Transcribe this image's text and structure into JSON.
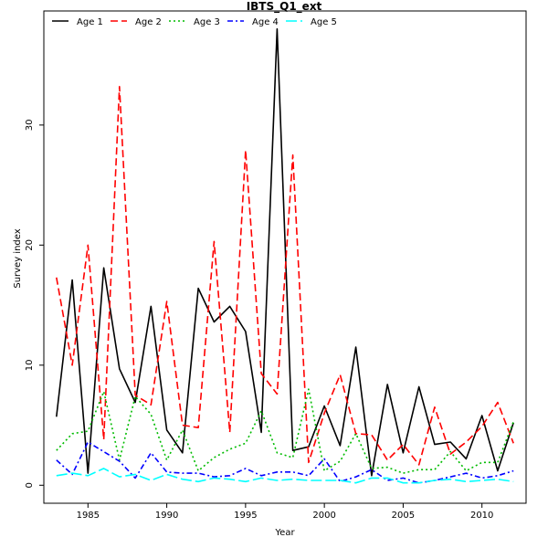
{
  "chart_data": {
    "type": "line",
    "title": "IBTS_Q1_ext",
    "xlabel": "Year",
    "ylabel": "Survey index",
    "xlim": [
      1982.2,
      2012.8
    ],
    "ylim": [
      -1.5,
      39.5
    ],
    "x_ticks": [
      1985,
      1990,
      1995,
      2000,
      2005,
      2010
    ],
    "y_ticks": [
      0,
      10,
      20,
      30
    ],
    "legend_position": "top-left",
    "grid": false,
    "x": [
      1983,
      1984,
      1985,
      1986,
      1987,
      1988,
      1989,
      1990,
      1991,
      1992,
      1993,
      1994,
      1995,
      1996,
      1997,
      1998,
      1999,
      2000,
      2001,
      2002,
      2003,
      2004,
      2005,
      2006,
      2007,
      2008,
      2009,
      2010,
      2011,
      2012
    ],
    "series": [
      {
        "name": "Age 1",
        "color": "#000000",
        "dash": "solid",
        "values": [
          5.7,
          17.1,
          1.0,
          18.1,
          9.7,
          6.9,
          14.9,
          4.6,
          2.7,
          16.4,
          13.6,
          14.9,
          12.8,
          4.4,
          38.0,
          2.9,
          3.2,
          6.6,
          3.3,
          11.5,
          0.8,
          8.4,
          2.7,
          8.2,
          3.4,
          3.6,
          2.2,
          5.8,
          1.2,
          5.2
        ]
      },
      {
        "name": "Age 2",
        "color": "#ff0000",
        "dash": "dashed",
        "values": [
          17.3,
          10.0,
          20.0,
          3.8,
          33.2,
          7.5,
          6.7,
          15.3,
          5.0,
          4.8,
          20.3,
          4.4,
          27.9,
          9.3,
          7.6,
          27.5,
          1.9,
          6.0,
          9.2,
          4.3,
          4.2,
          2.1,
          3.4,
          1.7,
          6.5,
          2.6,
          3.6,
          4.9,
          6.9,
          3.5
        ]
      },
      {
        "name": "Age 3",
        "color": "#00bb00",
        "dash": "dotted",
        "values": [
          2.9,
          4.3,
          4.5,
          7.8,
          2.1,
          7.4,
          5.9,
          2.1,
          4.6,
          1.2,
          2.3,
          3.0,
          3.5,
          6.2,
          2.7,
          2.3,
          8.0,
          1.2,
          2.0,
          4.3,
          1.4,
          1.5,
          1.0,
          1.3,
          1.3,
          2.8,
          1.2,
          1.9,
          1.9,
          5.3
        ]
      },
      {
        "name": "Age 4",
        "color": "#0000ff",
        "dash": "dashdot",
        "values": [
          2.1,
          0.9,
          3.6,
          2.8,
          2.0,
          0.6,
          2.7,
          1.1,
          1.0,
          1.0,
          0.7,
          0.8,
          1.4,
          0.8,
          1.1,
          1.1,
          0.8,
          2.2,
          0.3,
          0.7,
          1.3,
          0.4,
          0.6,
          0.2,
          0.4,
          0.7,
          1.0,
          0.6,
          0.8,
          1.2
        ]
      },
      {
        "name": "Age 5",
        "color": "#00ffff",
        "dash": "longdash",
        "values": [
          0.8,
          1.0,
          0.8,
          1.4,
          0.7,
          0.9,
          0.4,
          0.9,
          0.5,
          0.3,
          0.6,
          0.5,
          0.3,
          0.6,
          0.4,
          0.5,
          0.4,
          0.4,
          0.4,
          0.2,
          0.6,
          0.6,
          0.2,
          0.2,
          0.4,
          0.5,
          0.3,
          0.4,
          0.5,
          0.3
        ]
      }
    ]
  }
}
